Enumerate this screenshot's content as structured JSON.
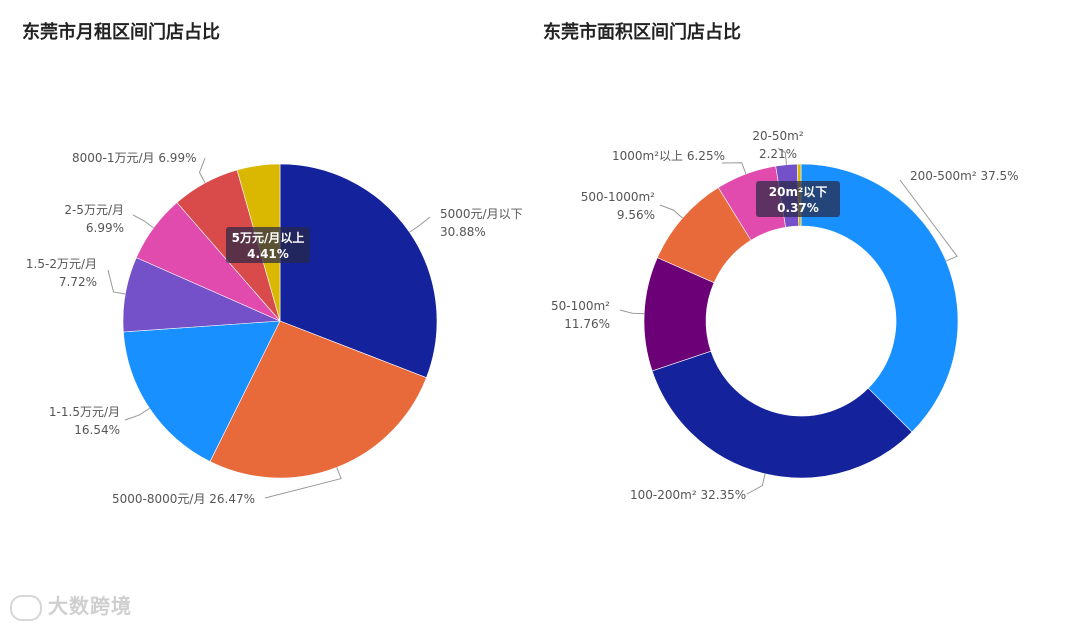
{
  "chart_data": [
    {
      "type": "pie",
      "title": "东莞市月租区间门店占比",
      "slices": [
        {
          "name": "5000元/月以下",
          "value": 30.88,
          "label": "5000元/月以下",
          "pct": "30.88%",
          "color": "#14229b"
        },
        {
          "name": "5000-8000元/月",
          "value": 26.47,
          "label": "5000-8000元/月 26.47%",
          "pct": "",
          "color": "#e8693a"
        },
        {
          "name": "1-1.5万元/月",
          "value": 16.54,
          "label": "1-1.5万元/月",
          "pct": "16.54%",
          "color": "#1890ff"
        },
        {
          "name": "1.5-2万元/月",
          "value": 7.72,
          "label": "1.5-2万元/月",
          "pct": "7.72%",
          "color": "#7451c8"
        },
        {
          "name": "2-5万元/月",
          "value": 6.99,
          "label": "2-5万元/月",
          "pct": "6.99%",
          "color": "#e04bad"
        },
        {
          "name": "8000-1万元/月",
          "value": 6.99,
          "label": "8000-1万元/月 6.99%",
          "pct": "",
          "color": "#d94a4a"
        },
        {
          "name": "5万元/月以上",
          "value": 4.41,
          "label": "5万元/月以上",
          "pct": "4.41%",
          "color": "#dab700"
        }
      ]
    },
    {
      "type": "pie",
      "title": "东莞市面积区间门店占比",
      "slices": [
        {
          "name": "200-500m²",
          "value": 37.5,
          "label": "200-500m² 37.5%",
          "pct": "",
          "color": "#1890ff"
        },
        {
          "name": "100-200m²",
          "value": 32.35,
          "label": "100-200m² 32.35%",
          "pct": "",
          "color": "#14229b"
        },
        {
          "name": "50-100m²",
          "value": 11.76,
          "label": "50-100m²",
          "pct": "11.76%",
          "color": "#6b0077"
        },
        {
          "name": "500-1000m²",
          "value": 9.56,
          "label": "500-1000m²",
          "pct": "9.56%",
          "color": "#e8693a"
        },
        {
          "name": "1000m²以上",
          "value": 6.25,
          "label": "1000m²以上 6.25%",
          "pct": "",
          "color": "#e04bad"
        },
        {
          "name": "20-50m²",
          "value": 2.21,
          "label": "20-50m²",
          "pct": "2.21%",
          "color": "#7451c8"
        },
        {
          "name": "20m²以下",
          "value": 0.37,
          "label": "20m²以下",
          "pct": "0.37%",
          "color": "#dab700"
        }
      ]
    }
  ],
  "watermark": "大数跨境"
}
